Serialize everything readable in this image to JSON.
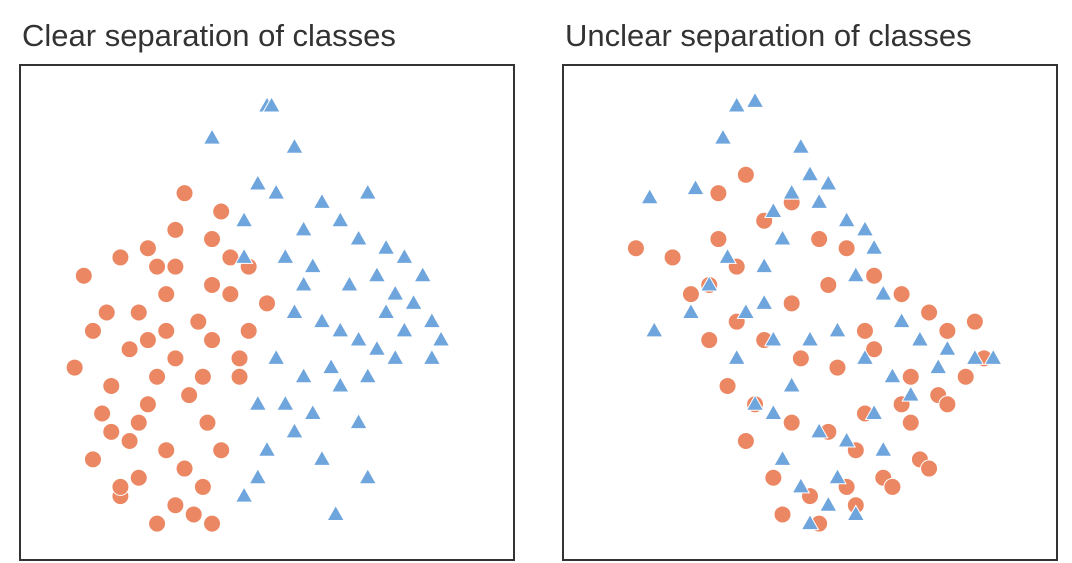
{
  "chart_data": [
    {
      "type": "scatter",
      "title": "Clear separation of classes",
      "xlim": [
        0,
        100
      ],
      "ylim": [
        0,
        100
      ],
      "series": [
        {
          "color": "#ec8763",
          "marker": "circle",
          "x": [
            32,
            40,
            24,
            30,
            18,
            10,
            12,
            22,
            28,
            35,
            38,
            42,
            30,
            26,
            20,
            16,
            8,
            14,
            24,
            33,
            37,
            44,
            46,
            28,
            22,
            18,
            12,
            30,
            36,
            40,
            34,
            26,
            20,
            16,
            24,
            30,
            38,
            42,
            46,
            50,
            28,
            22,
            36,
            32,
            18,
            38,
            15,
            26,
            38,
            44
          ],
          "y": [
            76,
            72,
            64,
            60,
            62,
            58,
            46,
            50,
            54,
            48,
            56,
            62,
            40,
            36,
            42,
            34,
            38,
            28,
            30,
            32,
            26,
            40,
            46,
            20,
            14,
            10,
            18,
            8,
            12,
            20,
            6,
            4,
            22,
            24,
            44,
            68,
            66,
            54,
            60,
            52,
            46,
            26,
            36,
            16,
            12,
            4,
            50,
            60,
            44,
            36
          ]
        },
        {
          "color": "#6fa5dd",
          "marker": "triangle",
          "x": [
            50,
            51,
            38,
            56,
            48,
            52,
            45,
            62,
            72,
            58,
            66,
            70,
            76,
            80,
            84,
            54,
            60,
            68,
            74,
            78,
            82,
            86,
            88,
            56,
            62,
            66,
            70,
            74,
            78,
            64,
            58,
            52,
            48,
            60,
            66,
            72,
            80,
            86,
            56,
            50,
            48,
            45,
            62,
            54,
            70,
            45,
            72,
            65,
            76,
            58
          ],
          "y": [
            95,
            95,
            88,
            86,
            78,
            76,
            70,
            74,
            76,
            68,
            70,
            66,
            64,
            62,
            58,
            62,
            60,
            56,
            58,
            54,
            52,
            48,
            44,
            50,
            48,
            46,
            44,
            42,
            40,
            38,
            36,
            40,
            30,
            28,
            34,
            36,
            46,
            40,
            24,
            20,
            14,
            10,
            18,
            30,
            26,
            62,
            14,
            6,
            50,
            56
          ]
        }
      ]
    },
    {
      "type": "scatter",
      "title": "Unclear separation of classes",
      "xlim": [
        0,
        100
      ],
      "ylim": [
        0,
        100
      ],
      "series": [
        {
          "color": "#ec8763",
          "marker": "circle",
          "x": [
            12,
            20,
            30,
            28,
            24,
            34,
            40,
            46,
            52,
            58,
            64,
            70,
            76,
            80,
            86,
            88,
            84,
            78,
            70,
            62,
            54,
            46,
            38,
            32,
            28,
            34,
            40,
            48,
            56,
            64,
            72,
            80,
            74,
            66,
            58,
            50,
            42,
            36,
            44,
            52,
            60,
            68,
            76,
            46,
            54,
            62,
            30,
            36,
            60,
            72
          ],
          "y": [
            64,
            62,
            66,
            56,
            54,
            60,
            70,
            74,
            66,
            64,
            58,
            54,
            50,
            46,
            48,
            40,
            36,
            32,
            30,
            28,
            24,
            26,
            30,
            34,
            44,
            48,
            44,
            40,
            38,
            42,
            36,
            30,
            18,
            14,
            12,
            10,
            14,
            22,
            6,
            4,
            8,
            12,
            16,
            52,
            56,
            46,
            76,
            80,
            20,
            26
          ]
        },
        {
          "color": "#6fa5dd",
          "marker": "triangle",
          "x": [
            34,
            38,
            31,
            15,
            25,
            48,
            50,
            42,
            46,
            52,
            54,
            58,
            62,
            64,
            32,
            28,
            40,
            44,
            36,
            60,
            66,
            70,
            74,
            80,
            86,
            90,
            50,
            56,
            62,
            68,
            46,
            42,
            38,
            52,
            58,
            64,
            44,
            48,
            54,
            60,
            16,
            24,
            72,
            78,
            34,
            42,
            56,
            66,
            40,
            50
          ],
          "y": [
            95,
            96,
            88,
            75,
            77,
            86,
            80,
            72,
            76,
            74,
            78,
            70,
            68,
            64,
            62,
            56,
            60,
            66,
            50,
            58,
            54,
            48,
            44,
            42,
            40,
            40,
            44,
            46,
            40,
            36,
            34,
            28,
            30,
            24,
            22,
            28,
            18,
            12,
            8,
            6,
            46,
            50,
            32,
            38,
            40,
            44,
            14,
            20,
            52,
            4
          ]
        }
      ]
    }
  ]
}
